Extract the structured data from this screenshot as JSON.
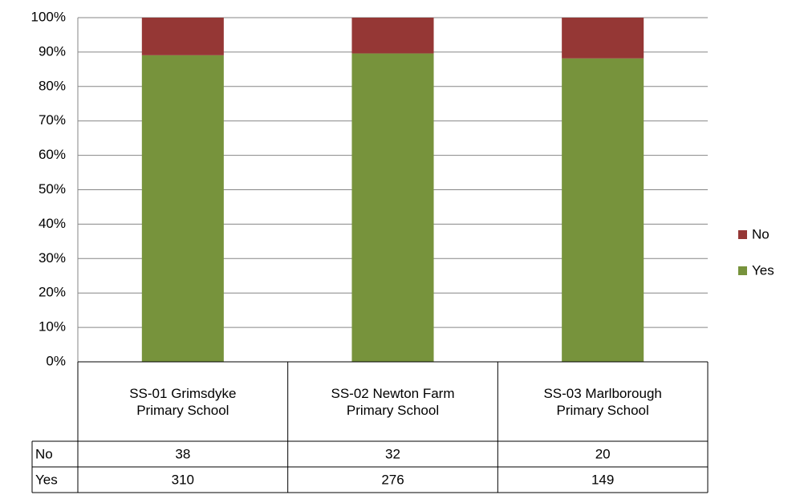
{
  "chart_data": {
    "type": "bar",
    "stacking": "percent",
    "categories": [
      "SS-01 Grimsdyke Primary School",
      "SS-02 Newton Farm Primary School",
      "SS-03 Marlborough Primary School"
    ],
    "series": [
      {
        "name": "Yes",
        "color": "#77933c",
        "values": [
          310,
          276,
          149
        ]
      },
      {
        "name": "No",
        "color": "#953735",
        "values": [
          38,
          32,
          20
        ]
      }
    ],
    "ylim": [
      0,
      100
    ],
    "yticks": [
      {
        "value": 0,
        "label": "0%"
      },
      {
        "value": 10,
        "label": "10%"
      },
      {
        "value": 20,
        "label": "20%"
      },
      {
        "value": 30,
        "label": "30%"
      },
      {
        "value": 40,
        "label": "40%"
      },
      {
        "value": 50,
        "label": "50%"
      },
      {
        "value": 60,
        "label": "60%"
      },
      {
        "value": 70,
        "label": "70%"
      },
      {
        "value": 80,
        "label": "80%"
      },
      {
        "value": 90,
        "label": "90%"
      },
      {
        "value": 100,
        "label": "100%"
      }
    ],
    "grid": true,
    "legend": "right",
    "data_table": true
  }
}
